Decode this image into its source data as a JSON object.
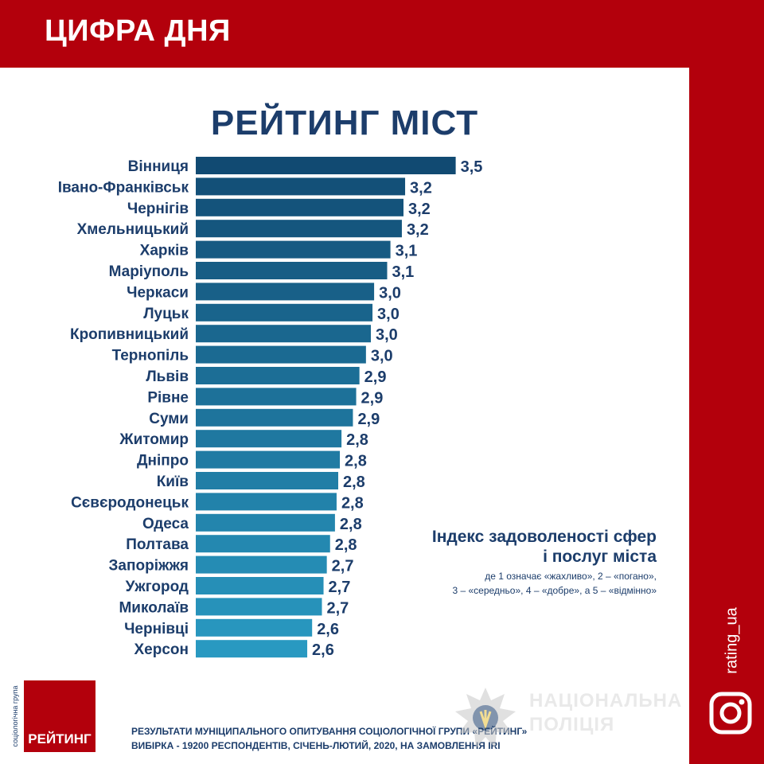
{
  "header": {
    "title": "ЦИФРА ДНЯ"
  },
  "chart_data": {
    "type": "bar",
    "orientation": "horizontal",
    "title": "РЕЙТИНГ МІСТ",
    "categories": [
      "Вінниця",
      "Івано-Франківськ",
      "Чернігів",
      "Хмельницький",
      "Харків",
      "Маріуполь",
      "Черкаси",
      "Луцьк",
      "Кропивницький",
      "Тернопіль",
      "Львів",
      "Рівне",
      "Суми",
      "Житомир",
      "Дніпро",
      "Київ",
      "Сєвєродонецьк",
      "Одеса",
      "Полтава",
      "Запоріжжя",
      "Ужгород",
      "Миколаїв",
      "Чернівці",
      "Херсон"
    ],
    "values": [
      3.5,
      3.2,
      3.2,
      3.2,
      3.1,
      3.1,
      3.0,
      3.0,
      3.0,
      3.0,
      2.9,
      2.9,
      2.9,
      2.8,
      2.8,
      2.8,
      2.8,
      2.8,
      2.8,
      2.7,
      2.7,
      2.7,
      2.6,
      2.6
    ],
    "value_labels": [
      "3,5",
      "3,2",
      "3,2",
      "3,2",
      "3,1",
      "3,1",
      "3,0",
      "3,0",
      "3,0",
      "3,0",
      "2,9",
      "2,9",
      "2,9",
      "2,8",
      "2,8",
      "2,8",
      "2,8",
      "2,8",
      "2,8",
      "2,7",
      "2,7",
      "2,7",
      "2,6",
      "2,6"
    ],
    "precise_values": [
      3.52,
      3.21,
      3.2,
      3.19,
      3.12,
      3.1,
      3.02,
      3.01,
      3.0,
      2.97,
      2.93,
      2.91,
      2.89,
      2.82,
      2.81,
      2.8,
      2.79,
      2.78,
      2.75,
      2.73,
      2.71,
      2.7,
      2.64,
      2.61
    ],
    "bar_colors": [
      "#114a72",
      "#135078",
      "#14537b",
      "#15567e",
      "#165a82",
      "#175d85",
      "#186088",
      "#19648c",
      "#1a678f",
      "#1b6a92",
      "#1c6e96",
      "#1d7199",
      "#1e749c",
      "#1f78a0",
      "#207ba3",
      "#217ea6",
      "#2282aa",
      "#2385ad",
      "#2488b0",
      "#258cb4",
      "#268fb7",
      "#2792ba",
      "#2896be",
      "#2999c1"
    ]
  },
  "legend": {
    "title": "Індекс задоволеності сфер\nі послуг міста",
    "note": "де 1 означає «жахливо», 2 – «погано»,\n3 – «середньо», 4 – «добре», а 5 – «відмінно»"
  },
  "logo": {
    "name": "РЕЙТИНГ",
    "vertical": "соціологічна група"
  },
  "footer": {
    "line1": "РЕЗУЛЬТАТИ МУНІЦИПАЛЬНОГО ОПИТУВАННЯ СОЦІОЛОГІЧНОЇ ГРУПИ «РЕЙТИНГ»",
    "line2": "ВИБІРКА - 19200 РЕСПОНДЕНТІВ, СІЧЕНЬ-ЛЮТИЙ, 2020, НА ЗАМОВЛЕННЯ IRI"
  },
  "watermark": {
    "line1": "НАЦІОНАЛЬНА",
    "line2": "ПОЛІЦІЯ"
  },
  "social": {
    "handle": "rating_ua",
    "icon": "instagram-icon"
  },
  "colors": {
    "brand_red": "#b3000c",
    "title_blue": "#1c3d6b"
  }
}
